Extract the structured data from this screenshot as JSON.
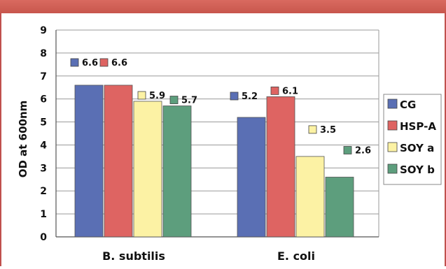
{
  "colors": {
    "header_band": "#cf5a51",
    "frame_border": "#c0504d",
    "grid": "#9a9a9a",
    "axis": "#555555"
  },
  "chart_data": {
    "type": "bar",
    "title": "",
    "xlabel": "",
    "ylabel": "OD at 600nm",
    "categories": [
      "B. subtilis",
      "E. coli"
    ],
    "ylim": [
      0,
      9
    ],
    "yticks": [
      0,
      1,
      2,
      3,
      4,
      5,
      6,
      7,
      8,
      9
    ],
    "grid": true,
    "legend_position": "right",
    "series": [
      {
        "name": "CG",
        "values": [
          6.6,
          5.2
        ],
        "labels": [
          "6.6",
          "5.2"
        ],
        "color": "#5a6fb4"
      },
      {
        "name": "HSP-A",
        "values": [
          6.6,
          6.1
        ],
        "labels": [
          "6.6",
          "6.1"
        ],
        "color": "#de6462"
      },
      {
        "name": "SOY a",
        "values": [
          5.9,
          3.5
        ],
        "labels": [
          "5.9",
          "3.5"
        ],
        "color": "#fcf2a4"
      },
      {
        "name": "SOY b",
        "values": [
          5.7,
          2.6
        ],
        "labels": [
          "5.7",
          "2.6"
        ],
        "color": "#5d9e7d"
      }
    ]
  }
}
